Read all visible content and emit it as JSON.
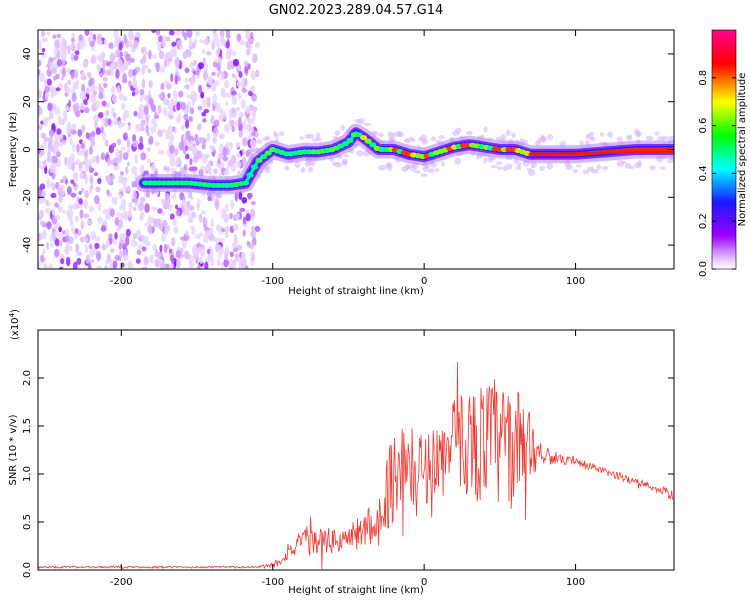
{
  "title": "GN02.2023.289.04.57.G14",
  "colors": {
    "accent_ridge": "#e31a1c",
    "snr_line": "#f03a32"
  },
  "chart_data": [
    {
      "type": "heatmap",
      "xlabel": "Height of straight line (km)",
      "ylabel": "Frequency (Hz)",
      "xlim": [
        -255,
        165
      ],
      "ylim": [
        -50,
        50
      ],
      "x_ticks": [
        -200,
        -100,
        0,
        100
      ],
      "y_ticks": [
        -40,
        -20,
        0,
        20,
        40
      ],
      "colorbar": {
        "label": "Normalized spectral amplitude",
        "range": [
          0,
          1
        ],
        "ticks": [
          "0.0",
          "0.2",
          "0.4",
          "0.6",
          "0.8"
        ],
        "tick_values": [
          0.0,
          0.2,
          0.4,
          0.6,
          0.8
        ],
        "colormap": [
          "#ffffff",
          "#a000ff",
          "#1010ff",
          "#00ffff",
          "#00ff00",
          "#ffff00",
          "#ff0000",
          "#ff00a0"
        ]
      },
      "noise_region_x": [
        -255,
        -110
      ],
      "ridge": {
        "x": [
          -185,
          -170,
          -155,
          -140,
          -128,
          -118,
          -110,
          -100,
          -90,
          -80,
          -70,
          -60,
          -50,
          -45,
          -40,
          -30,
          -20,
          -10,
          0,
          10,
          20,
          30,
          40,
          50,
          60,
          70,
          80,
          100,
          120,
          140,
          165
        ],
        "y": [
          -14,
          -14,
          -14,
          -15,
          -15,
          -14,
          -5,
          0,
          -2,
          -1,
          -1,
          0,
          3,
          7,
          5,
          0,
          0,
          -2,
          -3,
          -1,
          1,
          2,
          1,
          0,
          0,
          -2,
          -2,
          -2,
          -1,
          0,
          0
        ]
      }
    },
    {
      "type": "line",
      "xlabel": "Height of straight line (km)",
      "ylabel": "SNR (10 * v/v)",
      "y_multiplier": "(x10",
      "y_multiplier_exp": "4",
      "y_multiplier_close": ")",
      "xlim": [
        -255,
        165
      ],
      "ylim": [
        0,
        2.5
      ],
      "x_ticks": [
        -200,
        -100,
        0,
        100
      ],
      "y_ticks": [
        "0.0",
        "0.5",
        "1.0",
        "1.5",
        "2.0"
      ],
      "y_tick_values": [
        0.0,
        0.5,
        1.0,
        1.5,
        2.0
      ],
      "series": [
        {
          "x": [
            -255,
            -230,
            -200,
            -170,
            -140,
            -110,
            -100,
            -95,
            -90,
            -80,
            -70,
            -60,
            -50,
            -40,
            -30,
            -25,
            -20,
            -15,
            -10,
            -5,
            0,
            5,
            10,
            15,
            20,
            25,
            30,
            35,
            40,
            45,
            50,
            55,
            60,
            65,
            70,
            75,
            80,
            90,
            100,
            110,
            120,
            130,
            140,
            150,
            160,
            165
          ],
          "y": [
            0.03,
            0.03,
            0.03,
            0.03,
            0.03,
            0.03,
            0.05,
            0.1,
            0.2,
            0.28,
            0.3,
            0.3,
            0.32,
            0.42,
            0.5,
            0.8,
            1.0,
            1.1,
            1.05,
            1.0,
            1.05,
            1.15,
            1.15,
            1.2,
            1.3,
            1.35,
            1.35,
            1.3,
            1.35,
            1.35,
            1.3,
            1.25,
            1.3,
            1.35,
            1.3,
            1.25,
            1.2,
            1.15,
            1.12,
            1.08,
            1.02,
            0.97,
            0.92,
            0.87,
            0.8,
            0.77
          ],
          "amp": [
            0.01,
            0.01,
            0.01,
            0.01,
            0.01,
            0.01,
            0.03,
            0.06,
            0.1,
            0.14,
            0.14,
            0.14,
            0.15,
            0.2,
            0.25,
            0.4,
            0.5,
            0.5,
            0.45,
            0.45,
            0.4,
            0.4,
            0.4,
            0.45,
            0.5,
            0.55,
            0.6,
            0.6,
            0.65,
            0.7,
            0.7,
            0.7,
            0.6,
            0.5,
            0.35,
            0.2,
            0.1,
            0.05,
            0.05,
            0.04,
            0.04,
            0.04,
            0.04,
            0.04,
            0.05,
            0.05
          ]
        }
      ]
    }
  ]
}
